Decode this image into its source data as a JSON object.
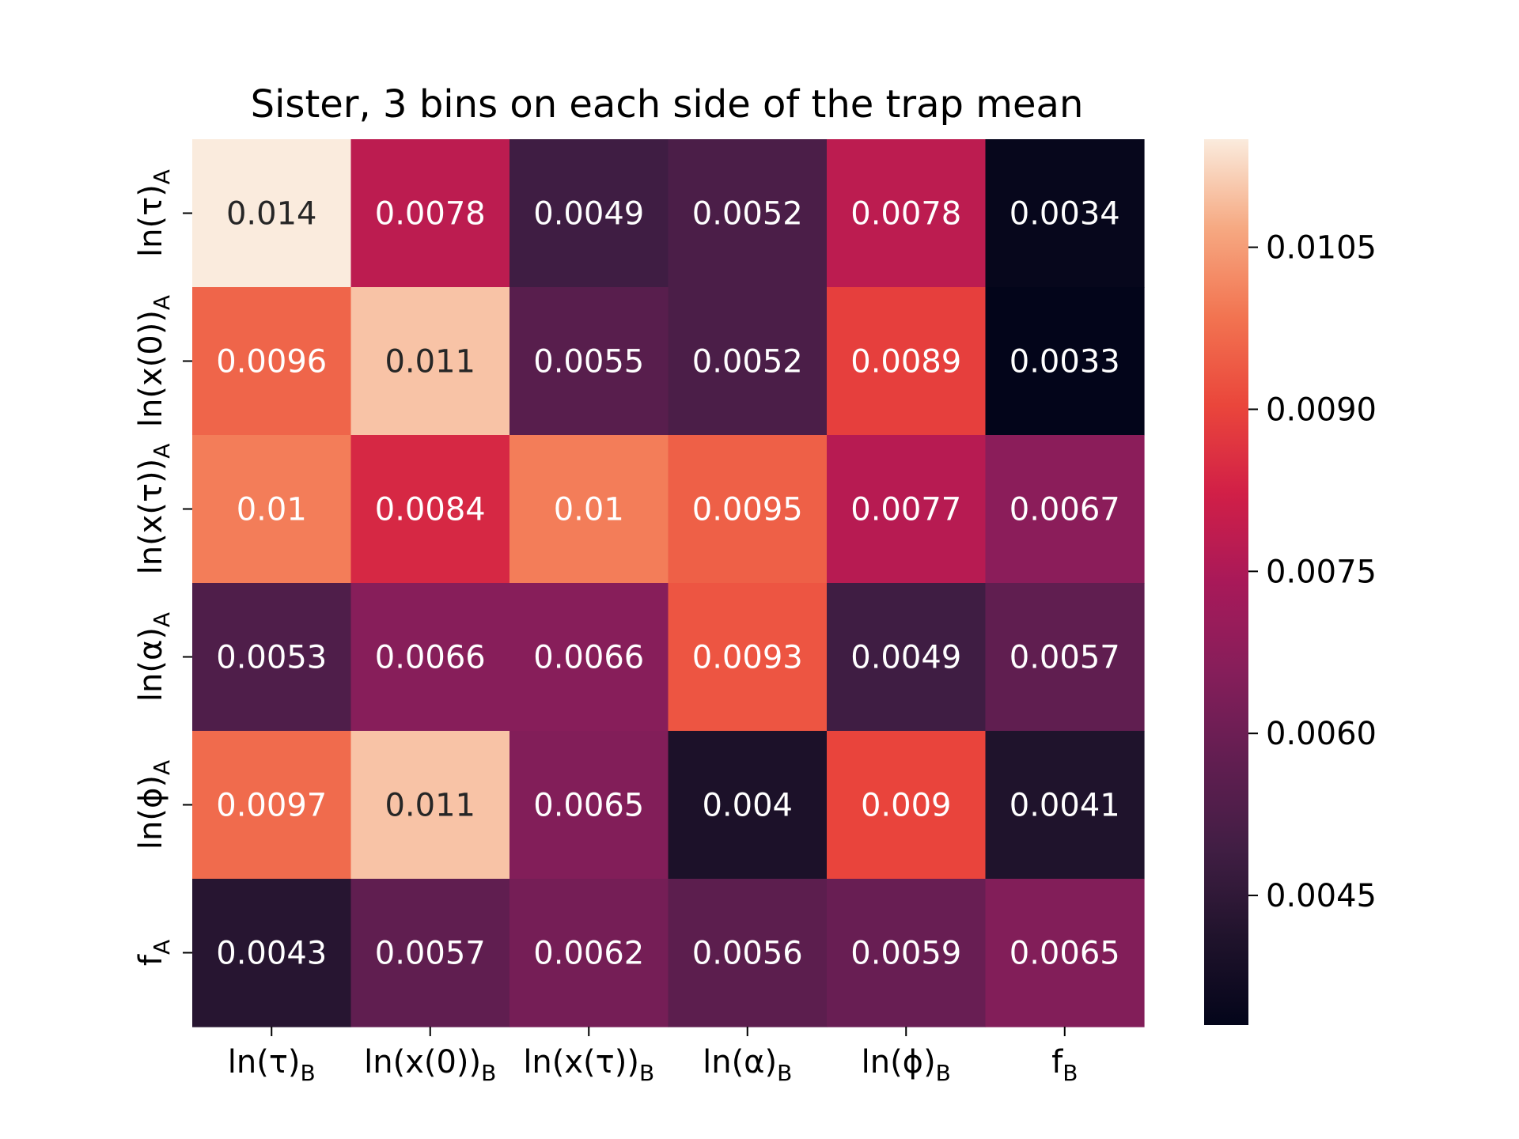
{
  "chart_data": {
    "type": "heatmap",
    "title": "Sister, 3 bins on each side of the trap mean",
    "row_labels": [
      {
        "base": "ln(τ)",
        "sub": "A"
      },
      {
        "base": "ln(x(0))",
        "sub": "A"
      },
      {
        "base": "ln(x(τ))",
        "sub": "A"
      },
      {
        "base": "ln(α)",
        "sub": "A"
      },
      {
        "base": "ln(ϕ)",
        "sub": "A"
      },
      {
        "base": "f",
        "sub": "A"
      }
    ],
    "col_labels": [
      {
        "base": "ln(τ)",
        "sub": "B"
      },
      {
        "base": "ln(x(0))",
        "sub": "B"
      },
      {
        "base": "ln(x(τ))",
        "sub": "B"
      },
      {
        "base": "ln(α)",
        "sub": "B"
      },
      {
        "base": "ln(ϕ)",
        "sub": "B"
      },
      {
        "base": "f",
        "sub": "B"
      }
    ],
    "values": [
      [
        0.014,
        0.0078,
        0.0049,
        0.0052,
        0.0078,
        0.0034
      ],
      [
        0.0096,
        0.011,
        0.0055,
        0.0052,
        0.0089,
        0.0033
      ],
      [
        0.01,
        0.0084,
        0.01,
        0.0095,
        0.0077,
        0.0067
      ],
      [
        0.0053,
        0.0066,
        0.0066,
        0.0093,
        0.0049,
        0.0057
      ],
      [
        0.0097,
        0.011,
        0.0065,
        0.004,
        0.009,
        0.0041
      ],
      [
        0.0043,
        0.0057,
        0.0062,
        0.0056,
        0.0059,
        0.0065
      ]
    ],
    "cell_text": [
      [
        "0.014",
        "0.0078",
        "0.0049",
        "0.0052",
        "0.0078",
        "0.0034"
      ],
      [
        "0.0096",
        "0.011",
        "0.0055",
        "0.0052",
        "0.0089",
        "0.0033"
      ],
      [
        "0.01",
        "0.0084",
        "0.01",
        "0.0095",
        "0.0077",
        "0.0067"
      ],
      [
        "0.0053",
        "0.0066",
        "0.0066",
        "0.0093",
        "0.0049",
        "0.0057"
      ],
      [
        "0.0097",
        "0.011",
        "0.0065",
        "0.004",
        "0.009",
        "0.0041"
      ],
      [
        "0.0043",
        "0.0057",
        "0.0062",
        "0.0056",
        "0.0059",
        "0.0065"
      ]
    ],
    "colorbar": {
      "vmin": 0.0033,
      "vmax": 0.0115,
      "ticks": [
        0.0045,
        0.006,
        0.0075,
        0.009,
        0.0105
      ],
      "tick_labels": [
        "0.0045",
        "0.0060",
        "0.0075",
        "0.0090",
        "0.0105"
      ]
    },
    "colormap": "rocket",
    "grid": false
  }
}
